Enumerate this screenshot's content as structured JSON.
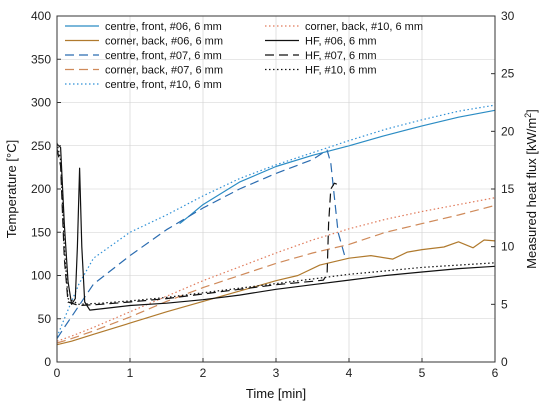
{
  "chart_data": {
    "type": "line",
    "xlabel": "Time [min]",
    "ylabel_left": "Temperature [°C]",
    "ylabel_right": "Measured heat flux [kW/m",
    "ylabel_right_sup": "2",
    "ylabel_right_end": "]",
    "xlim": [
      0,
      6
    ],
    "ylim_left": [
      0,
      400
    ],
    "ylim_right": [
      0,
      30
    ],
    "x_ticks": [
      "0",
      "1",
      "2",
      "3",
      "4",
      "5",
      "6"
    ],
    "y_left_ticks": [
      "0",
      "50",
      "100",
      "150",
      "200",
      "250",
      "300",
      "350",
      "400"
    ],
    "y_right_ticks": [
      "0",
      "5",
      "10",
      "15",
      "20",
      "25",
      "30"
    ],
    "grid": true,
    "legend_placement": "top-left",
    "series": [
      {
        "name": "centre, front, #06, 6 mm",
        "color": "#2b8cc4",
        "dash": "solid",
        "axis": "left",
        "points": [
          [
            1.68,
            160
          ],
          [
            1.8,
            168
          ],
          [
            2.0,
            182
          ],
          [
            2.5,
            208
          ],
          [
            3.0,
            226
          ],
          [
            3.5,
            239
          ],
          [
            4.0,
            250
          ],
          [
            4.5,
            262
          ],
          [
            5.0,
            273
          ],
          [
            5.5,
            283
          ],
          [
            6.0,
            291
          ]
        ]
      },
      {
        "name": "corner, back, #06, 6 mm",
        "color": "#b07a2e",
        "dash": "solid",
        "axis": "left",
        "points": [
          [
            0.0,
            20
          ],
          [
            0.2,
            24
          ],
          [
            0.5,
            32
          ],
          [
            1.0,
            45
          ],
          [
            1.5,
            58
          ],
          [
            2.0,
            70
          ],
          [
            2.5,
            82
          ],
          [
            3.0,
            94
          ],
          [
            3.3,
            100
          ],
          [
            3.6,
            112
          ],
          [
            4.0,
            120
          ],
          [
            4.3,
            123
          ],
          [
            4.6,
            119
          ],
          [
            4.8,
            127
          ],
          [
            5.0,
            130
          ],
          [
            5.3,
            133
          ],
          [
            5.5,
            139
          ],
          [
            5.7,
            132
          ],
          [
            5.85,
            141
          ],
          [
            6.0,
            140
          ]
        ]
      },
      {
        "name": "centre, front, #07, 6 mm",
        "color": "#2b6cb0",
        "dash": "long",
        "axis": "left",
        "points": [
          [
            0.0,
            27
          ],
          [
            0.1,
            40
          ],
          [
            0.3,
            65
          ],
          [
            0.5,
            90
          ],
          [
            1.0,
            123
          ],
          [
            1.5,
            153
          ],
          [
            2.0,
            178
          ],
          [
            2.5,
            200
          ],
          [
            3.0,
            218
          ],
          [
            3.5,
            234
          ],
          [
            3.7,
            245
          ],
          [
            3.75,
            230
          ],
          [
            3.85,
            150
          ],
          [
            3.95,
            120
          ]
        ]
      },
      {
        "name": "corner, back, #07, 6 mm",
        "color": "#cf8a5a",
        "dash": "long",
        "axis": "left",
        "points": [
          [
            0.0,
            22
          ],
          [
            0.2,
            27
          ],
          [
            0.5,
            36
          ],
          [
            1.0,
            52
          ],
          [
            1.5,
            70
          ],
          [
            2.0,
            86
          ],
          [
            2.5,
            100
          ],
          [
            3.0,
            114
          ],
          [
            3.5,
            126
          ],
          [
            4.0,
            136
          ],
          [
            4.5,
            150
          ],
          [
            5.0,
            160
          ],
          [
            5.5,
            170
          ],
          [
            6.0,
            181
          ]
        ]
      },
      {
        "name": "centre, front, #10, 6 mm",
        "color": "#2f90d6",
        "dash": "dotted",
        "axis": "left",
        "points": [
          [
            0.0,
            29
          ],
          [
            0.1,
            50
          ],
          [
            0.3,
            90
          ],
          [
            0.5,
            120
          ],
          [
            1.0,
            150
          ],
          [
            1.5,
            170
          ],
          [
            2.0,
            192
          ],
          [
            2.5,
            212
          ],
          [
            3.0,
            228
          ],
          [
            3.5,
            242
          ],
          [
            4.0,
            256
          ],
          [
            4.5,
            269
          ],
          [
            5.0,
            280
          ],
          [
            5.5,
            290
          ],
          [
            6.0,
            297
          ]
        ]
      },
      {
        "name": "corner, back, #10, 6 mm",
        "color": "#e07a5a",
        "dash": "dotted",
        "axis": "left",
        "points": [
          [
            0.0,
            24
          ],
          [
            0.2,
            30
          ],
          [
            0.5,
            40
          ],
          [
            1.0,
            58
          ],
          [
            1.5,
            76
          ],
          [
            2.0,
            94
          ],
          [
            2.5,
            110
          ],
          [
            3.0,
            126
          ],
          [
            3.5,
            141
          ],
          [
            4.0,
            154
          ],
          [
            4.5,
            165
          ],
          [
            5.0,
            174
          ],
          [
            5.5,
            182
          ],
          [
            6.0,
            190
          ]
        ]
      },
      {
        "name": "HF, #06, 6 mm",
        "color": "#111111",
        "dash": "solid",
        "axis": "right",
        "points": [
          [
            0.0,
            18.9
          ],
          [
            0.05,
            18.6
          ],
          [
            0.1,
            12.0
          ],
          [
            0.15,
            7.0
          ],
          [
            0.2,
            5.0
          ],
          [
            0.25,
            5.5
          ],
          [
            0.28,
            10.0
          ],
          [
            0.31,
            16.8
          ],
          [
            0.34,
            10.0
          ],
          [
            0.38,
            5.2
          ],
          [
            0.45,
            4.5
          ],
          [
            0.6,
            4.6
          ],
          [
            1.0,
            4.9
          ],
          [
            1.5,
            5.1
          ],
          [
            2.0,
            5.4
          ],
          [
            2.5,
            5.8
          ],
          [
            3.0,
            6.3
          ],
          [
            3.5,
            6.7
          ],
          [
            4.0,
            7.1
          ],
          [
            4.5,
            7.5
          ],
          [
            5.0,
            7.8
          ],
          [
            5.5,
            8.1
          ],
          [
            6.0,
            8.3
          ]
        ]
      },
      {
        "name": "HF, #07, 6 mm",
        "color": "#111111",
        "dash": "long",
        "axis": "right",
        "points": [
          [
            0.0,
            18.5
          ],
          [
            0.05,
            17.0
          ],
          [
            0.1,
            9.0
          ],
          [
            0.15,
            5.2
          ],
          [
            0.3,
            4.9
          ],
          [
            0.6,
            5.0
          ],
          [
            1.0,
            5.2
          ],
          [
            1.5,
            5.5
          ],
          [
            2.0,
            5.9
          ],
          [
            2.5,
            6.3
          ],
          [
            3.0,
            6.7
          ],
          [
            3.5,
            7.0
          ],
          [
            3.65,
            7.1
          ],
          [
            3.7,
            7.6
          ],
          [
            3.72,
            12.0
          ],
          [
            3.75,
            15.0
          ],
          [
            3.8,
            15.5
          ],
          [
            3.88,
            15.3
          ]
        ]
      },
      {
        "name": "HF, #10, 6 mm",
        "color": "#111111",
        "dash": "dotted",
        "axis": "right",
        "points": [
          [
            0.0,
            19.0
          ],
          [
            0.05,
            17.5
          ],
          [
            0.1,
            10.0
          ],
          [
            0.15,
            5.5
          ],
          [
            0.3,
            5.0
          ],
          [
            0.6,
            5.1
          ],
          [
            1.0,
            5.3
          ],
          [
            1.5,
            5.6
          ],
          [
            2.0,
            6.0
          ],
          [
            2.5,
            6.4
          ],
          [
            3.0,
            6.8
          ],
          [
            3.5,
            7.2
          ],
          [
            4.0,
            7.6
          ],
          [
            4.5,
            7.9
          ],
          [
            5.0,
            8.2
          ],
          [
            5.5,
            8.4
          ],
          [
            6.0,
            8.6
          ]
        ]
      }
    ],
    "legend": [
      {
        "label": "centre, front, #06, 6 mm",
        "color": "#2b8cc4",
        "dash": "solid"
      },
      {
        "label": "corner, back, #10, 6 mm",
        "color": "#e07a5a",
        "dash": "dotted"
      },
      {
        "label": "corner, back, #06, 6 mm",
        "color": "#b07a2e",
        "dash": "solid"
      },
      {
        "label": "HF, #06, 6 mm",
        "color": "#111111",
        "dash": "solid"
      },
      {
        "label": "centre, front, #07, 6 mm",
        "color": "#2b6cb0",
        "dash": "long"
      },
      {
        "label": "HF, #07, 6 mm",
        "color": "#111111",
        "dash": "long"
      },
      {
        "label": "corner, back, #07, 6 mm",
        "color": "#cf8a5a",
        "dash": "long"
      },
      {
        "label": "HF, #10, 6 mm",
        "color": "#111111",
        "dash": "dotted"
      },
      {
        "label": "centre, front, #10, 6 mm",
        "color": "#2f90d6",
        "dash": "dotted"
      }
    ]
  }
}
